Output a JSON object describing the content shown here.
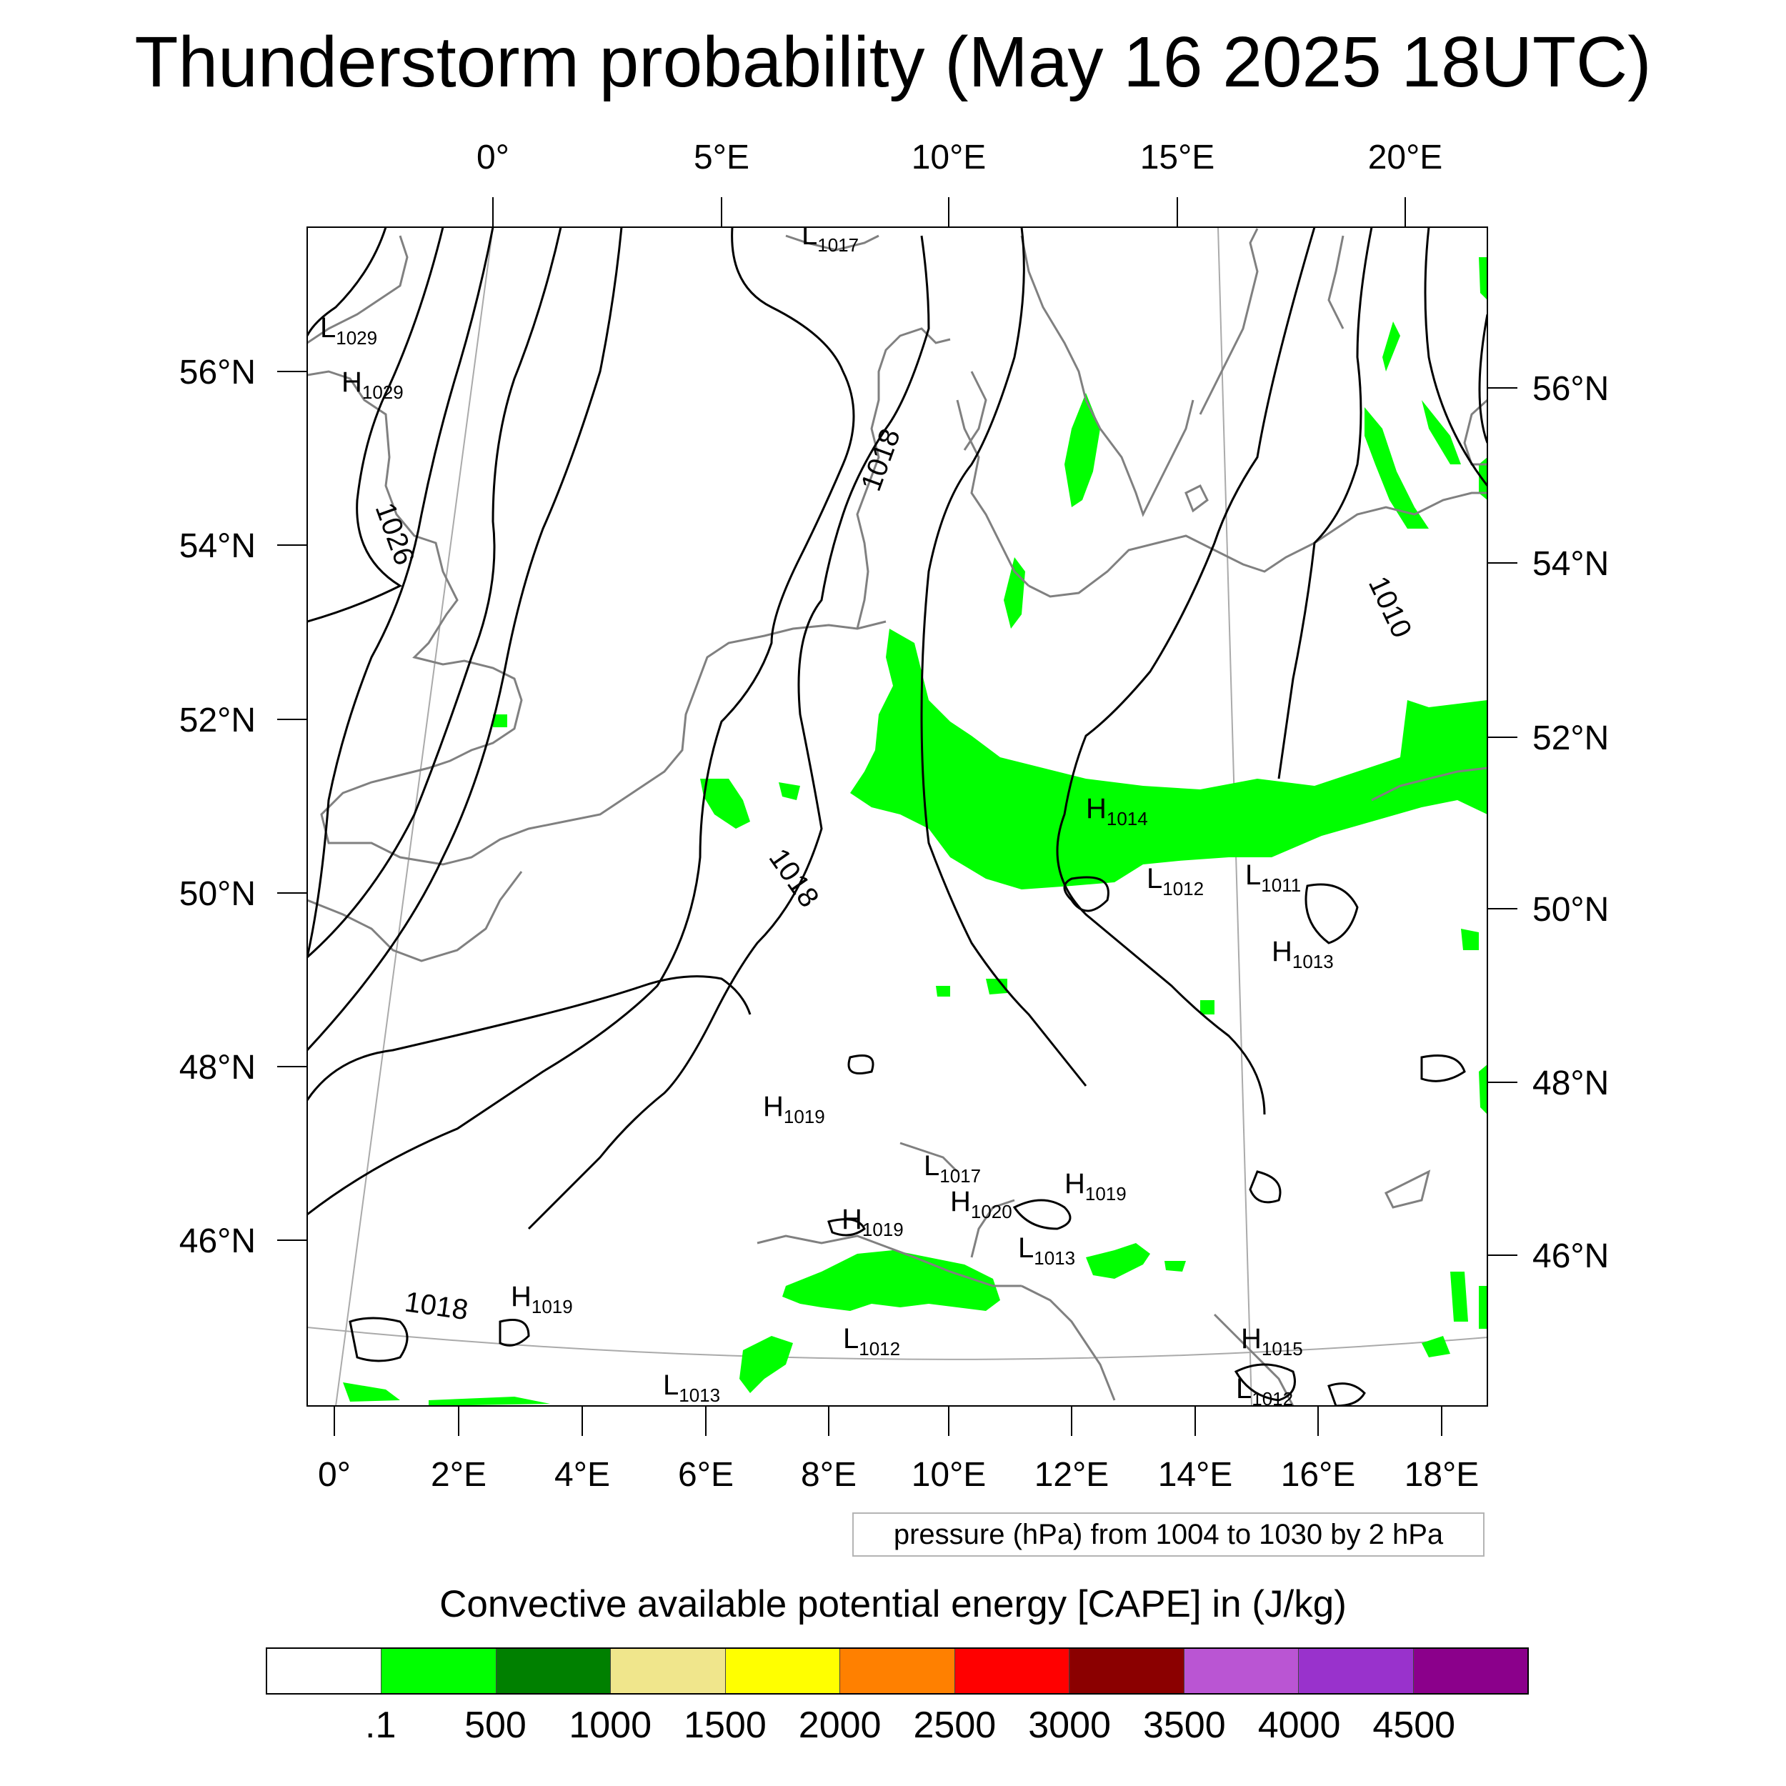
{
  "title": "Thunderstorm probability (May 16 2025 18UTC)",
  "top_axis_labels": [
    "0°",
    "5°E",
    "10°E",
    "15°E",
    "20°E"
  ],
  "bottom_axis_labels": [
    "0°",
    "2°E",
    "4°E",
    "6°E",
    "8°E",
    "10°E",
    "12°E",
    "14°E",
    "16°E",
    "18°E"
  ],
  "left_axis_labels": [
    "56°N",
    "54°N",
    "52°N",
    "50°N",
    "48°N",
    "46°N"
  ],
  "right_axis_labels": [
    "56°N",
    "54°N",
    "52°N",
    "50°N",
    "48°N",
    "46°N"
  ],
  "isobar_labels": [
    "1018",
    "1026",
    "1018",
    "1018",
    "1010"
  ],
  "pressure_centers": [
    {
      "type": "L",
      "value": "1017"
    },
    {
      "type": "L",
      "value": "1029"
    },
    {
      "type": "H",
      "value": "1029"
    },
    {
      "type": "H",
      "value": "1014"
    },
    {
      "type": "L",
      "value": "1012"
    },
    {
      "type": "L",
      "value": "1011"
    },
    {
      "type": "H",
      "value": "1013"
    },
    {
      "type": "H",
      "value": "1019"
    },
    {
      "type": "L",
      "value": "1017"
    },
    {
      "type": "H",
      "value": "1020"
    },
    {
      "type": "H",
      "value": "1019"
    },
    {
      "type": "H",
      "value": "1019"
    },
    {
      "type": "L",
      "value": "1013"
    },
    {
      "type": "H",
      "value": "1019"
    },
    {
      "type": "L",
      "value": "1012"
    },
    {
      "type": "H",
      "value": "1015"
    },
    {
      "type": "L",
      "value": "1013"
    },
    {
      "type": "L",
      "value": "1012"
    }
  ],
  "pressure_info": "pressure (hPa) from 1004 to 1030 by 2 hPa",
  "legend": {
    "title": "Convective available potential energy [CAPE] in (J/kg)",
    "colors": [
      "#ffffff",
      "#00ff00",
      "#008000",
      "#f0e68c",
      "#ffff00",
      "#ff8000",
      "#ff0000",
      "#8b0000",
      "#ba55d3",
      "#9932cc",
      "#8b008b"
    ],
    "labels": [
      ".1",
      "500",
      "1000",
      "1500",
      "2000",
      "2500",
      "3000",
      "3500",
      "4000",
      "4500"
    ]
  },
  "colors": {
    "cape_green": "#00ff00",
    "coastline": "#808080",
    "isobar": "#000000"
  }
}
